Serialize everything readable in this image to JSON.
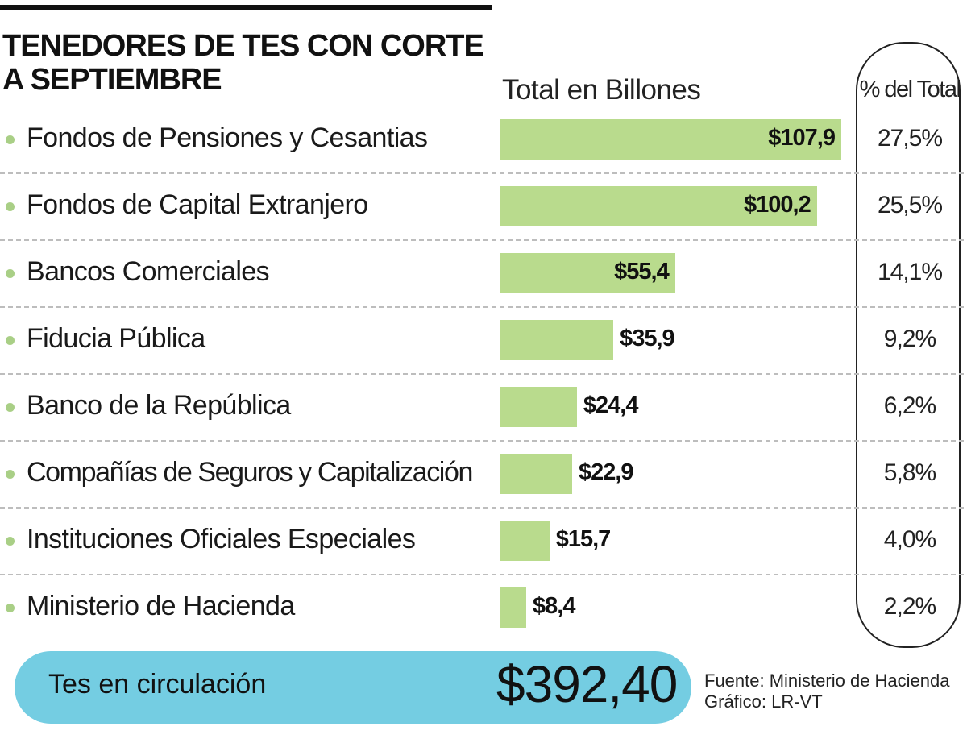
{
  "chart_data": {
    "type": "bar",
    "orientation": "horizontal",
    "title": "TENEDORES DE TES CON CORTE A SEPTIEMBRE",
    "value_header": "Total en Billones",
    "percent_header": "% del Total",
    "categories": [
      "Fondos de Pensiones y Cesantias",
      "Fondos de Capital Extranjero",
      "Bancos Comerciales",
      "Fiducia Pública",
      "Banco de la República",
      "Compañías de Seguros y Capitalización",
      "Instituciones Oficiales Especiales",
      "Ministerio de Hacienda"
    ],
    "values": [
      107.9,
      100.2,
      55.4,
      35.9,
      24.4,
      22.9,
      15.7,
      8.4
    ],
    "value_labels": [
      "$107,9",
      "$100,2",
      "$55,4",
      "$35,9",
      "$24,4",
      "$22,9",
      "$15,7",
      "$8,4"
    ],
    "percent_labels": [
      "27,5%",
      "25,5%",
      "14,1%",
      "9,2%",
      "6,2%",
      "5,8%",
      "4,0%",
      "2,2%"
    ],
    "colors": {
      "bar": "#b9db8d",
      "bullet": "#a9cf86",
      "total_pill": "#74cde2"
    }
  },
  "total": {
    "label": "Tes en circulación",
    "value": "$392,40"
  },
  "source": {
    "line1": "Fuente: Ministerio de Hacienda",
    "line2": "Gráfico: LR-VT"
  }
}
